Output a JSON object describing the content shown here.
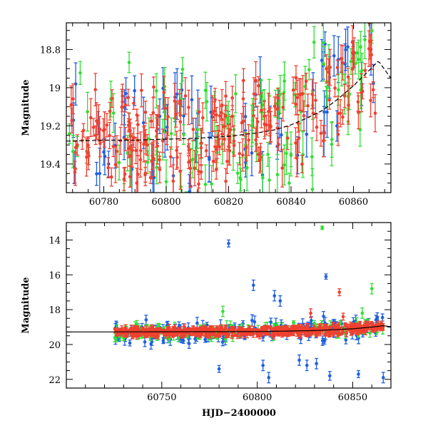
{
  "figure": {
    "xlabel": "HJD−2400000"
  },
  "colors": {
    "blue": "#1f5fe0",
    "green": "#33dd33",
    "red": "#f04030",
    "model": "#000000"
  },
  "chart_data": [
    {
      "type": "scatter",
      "title": "",
      "xlabel": "",
      "ylabel": "Magnitude",
      "xlim": [
        60768,
        60872
      ],
      "ylim": [
        19.55,
        18.66
      ],
      "y_inverted": true,
      "xticks": [
        60780,
        60800,
        60820,
        60840,
        60860
      ],
      "yticks": [
        18.8,
        19,
        19.2,
        19.4
      ],
      "series": [
        {
          "color": "blue",
          "n": 75,
          "xrange": [
            60769,
            60867
          ],
          "yrange": [
            18.7,
            19.55
          ],
          "err": [
            0.06,
            0.14
          ]
        },
        {
          "color": "green",
          "n": 110,
          "xrange": [
            60769,
            60867
          ],
          "yrange": [
            18.7,
            19.55
          ],
          "err": [
            0.05,
            0.12
          ]
        },
        {
          "color": "red",
          "n": 230,
          "xrange": [
            60769,
            60867
          ],
          "yrange": [
            18.85,
            19.45
          ],
          "err": [
            0.03,
            0.1
          ]
        }
      ],
      "model_curve": {
        "x": [
          60768,
          60780,
          60790,
          60800,
          60810,
          60820,
          60830,
          60835,
          60840,
          60845,
          60850,
          60855,
          60860,
          60865,
          60868,
          60872
        ],
        "y": [
          19.28,
          19.275,
          19.275,
          19.27,
          19.265,
          19.255,
          19.235,
          19.22,
          19.195,
          19.16,
          19.12,
          19.06,
          18.99,
          18.91,
          18.86,
          18.95
        ]
      }
    },
    {
      "type": "scatter",
      "title": "",
      "xlabel": "HJD−2400000",
      "ylabel": "Magnitude",
      "xlim": [
        60700,
        60870
      ],
      "ylim": [
        22.5,
        13
      ],
      "y_inverted": true,
      "xticks": [
        60750,
        60800,
        60850
      ],
      "yticks": [
        14,
        16,
        18,
        20,
        22
      ],
      "series": [
        {
          "color": "blue",
          "n": 150,
          "xrange": [
            60725,
            60866
          ],
          "yrange": [
            18.7,
            20.4
          ],
          "err": [
            0.15,
            0.35
          ]
        },
        {
          "color": "green",
          "n": 140,
          "xrange": [
            60725,
            60866
          ],
          "yrange": [
            18.9,
            19.9
          ],
          "err": [
            0.1,
            0.3
          ]
        },
        {
          "color": "red",
          "n": 520,
          "xrange": [
            60725,
            60866
          ],
          "yrange": [
            18.95,
            19.6
          ],
          "err": [
            0.05,
            0.2
          ]
        }
      ],
      "outliers": [
        {
          "color": "green",
          "x": 60834,
          "y": 13.3,
          "err": 0.1
        },
        {
          "color": "blue",
          "x": 60785,
          "y": 14.2,
          "err": 0.2
        },
        {
          "color": "blue",
          "x": 60836,
          "y": 16.1,
          "err": 0.15
        },
        {
          "color": "blue",
          "x": 60798,
          "y": 16.6,
          "err": 0.3
        },
        {
          "color": "red",
          "x": 60843,
          "y": 17.0,
          "err": 0.2
        },
        {
          "color": "green",
          "x": 60860,
          "y": 16.8,
          "err": 0.3
        },
        {
          "color": "blue",
          "x": 60809,
          "y": 17.2,
          "err": 0.3
        },
        {
          "color": "blue",
          "x": 60812,
          "y": 17.5,
          "err": 0.3
        },
        {
          "color": "blue",
          "x": 60780,
          "y": 21.4,
          "err": 0.2
        },
        {
          "color": "blue",
          "x": 60806,
          "y": 21.9,
          "err": 0.3
        },
        {
          "color": "blue",
          "x": 60831,
          "y": 21.1,
          "err": 0.3
        },
        {
          "color": "blue",
          "x": 60838,
          "y": 21.8,
          "err": 0.25
        },
        {
          "color": "blue",
          "x": 60853,
          "y": 21.7,
          "err": 0.2
        },
        {
          "color": "blue",
          "x": 60866,
          "y": 21.9,
          "err": 0.3
        },
        {
          "color": "blue",
          "x": 60803,
          "y": 21.2,
          "err": 0.3
        },
        {
          "color": "blue",
          "x": 60822,
          "y": 20.9,
          "err": 0.3
        },
        {
          "color": "blue",
          "x": 60826,
          "y": 21.2,
          "err": 0.3
        },
        {
          "color": "red",
          "x": 60828,
          "y": 18.2,
          "err": 0.25
        },
        {
          "color": "red",
          "x": 60845,
          "y": 18.4,
          "err": 0.2
        },
        {
          "color": "green",
          "x": 60782,
          "y": 18.1,
          "err": 0.3
        },
        {
          "color": "green",
          "x": 60855,
          "y": 18.2,
          "err": 0.3
        }
      ],
      "model_curve": {
        "x": [
          60700,
          60750,
          60800,
          60830,
          60850,
          60860,
          60866,
          60870
        ],
        "y": [
          19.28,
          19.27,
          19.26,
          19.2,
          19.1,
          19.0,
          18.92,
          18.98
        ]
      }
    }
  ]
}
